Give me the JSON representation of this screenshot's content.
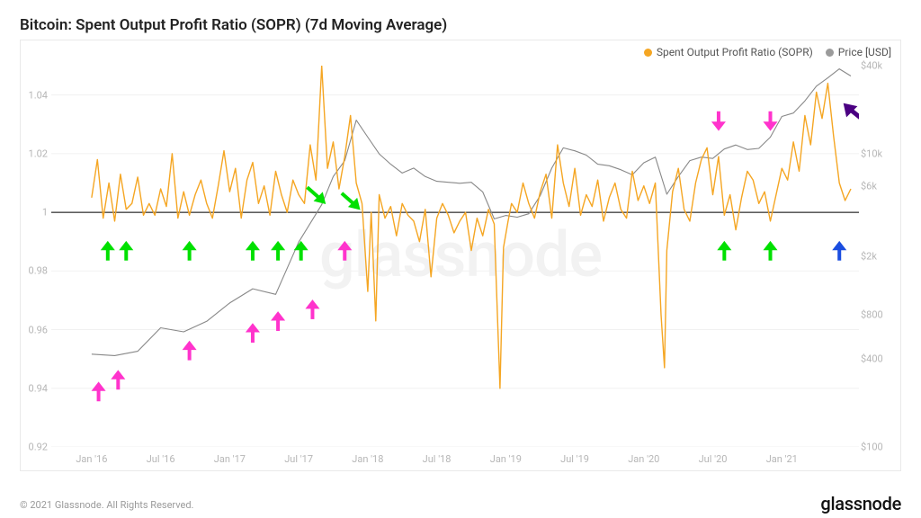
{
  "title": "Bitcoin: Spent Output Profit Ratio (SOPR) (7d Moving Average)",
  "footer": "© 2021 Glassnode. All Rights Reserved.",
  "brand": "glassnode",
  "watermark": "glassnode",
  "legend": {
    "series1": {
      "label": "Spent Output Profit Ratio (SOPR)",
      "color": "#f5a623"
    },
    "series2": {
      "label": "Price [USD]",
      "color": "#9b9b9b"
    }
  },
  "chart": {
    "background_color": "#ffffff",
    "grid_color": "#f1f1f1",
    "axis_label_color": "#b6b6b6",
    "axis_label_fontsize": 11,
    "inner_width": 900,
    "inner_height": 426,
    "x": {
      "domain_months": [
        0,
        66
      ],
      "tick_months": [
        0,
        6,
        12,
        18,
        24,
        30,
        36,
        42,
        48,
        54,
        60,
        66
      ],
      "tick_labels": [
        "Jan '16",
        "Jul '16",
        "Jan '17",
        "Jul '17",
        "Jan '18",
        "Jul '18",
        "Jan '19",
        "Jul '19",
        "Jan '20",
        "Jul '20",
        "Jan '21",
        ""
      ],
      "first_tick_offset_frac": 0.05
    },
    "left_axis": {
      "domain": [
        0.92,
        1.05
      ],
      "ticks": [
        0.92,
        0.94,
        0.96,
        0.98,
        1.0,
        1.02,
        1.04
      ],
      "tick_labels": [
        "0.92",
        "0.94",
        "0.96",
        "0.98",
        "1",
        "1.02",
        "1.04"
      ],
      "ref_line": {
        "y": 1.0,
        "color": "#000000",
        "width": 1
      }
    },
    "right_axis": {
      "scale": "log",
      "domain": [
        100,
        40000
      ],
      "ticks": [
        100,
        400,
        800,
        2000,
        6000,
        10000,
        40000
      ],
      "tick_labels": [
        "$100",
        "$400",
        "$800",
        "$2k",
        "$6k",
        "$10k",
        "$40k"
      ]
    },
    "sopr_series": {
      "color": "#f5a623",
      "width": 1.4,
      "points": [
        [
          0,
          1.005
        ],
        [
          0.5,
          1.018
        ],
        [
          1,
          0.998
        ],
        [
          1.5,
          1.01
        ],
        [
          2,
          0.997
        ],
        [
          2.5,
          1.013
        ],
        [
          3,
          1.001
        ],
        [
          3.5,
          1.003
        ],
        [
          4,
          1.012
        ],
        [
          4.5,
          0.999
        ],
        [
          5,
          1.003
        ],
        [
          5.5,
          0.999
        ],
        [
          6,
          1.008
        ],
        [
          6.5,
          1.002
        ],
        [
          7,
          1.02
        ],
        [
          7.5,
          0.998
        ],
        [
          8,
          1.007
        ],
        [
          8.5,
          0.999
        ],
        [
          9,
          1.006
        ],
        [
          9.5,
          1.011
        ],
        [
          10,
          1.003
        ],
        [
          10.5,
          0.998
        ],
        [
          11,
          1.009
        ],
        [
          11.5,
          1.021
        ],
        [
          12,
          1.007
        ],
        [
          12.5,
          1.015
        ],
        [
          13,
          0.998
        ],
        [
          13.5,
          1.011
        ],
        [
          14,
          1.017
        ],
        [
          14.5,
          1.003
        ],
        [
          15,
          1.009
        ],
        [
          15.5,
          0.999
        ],
        [
          16,
          1.014
        ],
        [
          16.5,
          1.006
        ],
        [
          17,
          1.0
        ],
        [
          17.5,
          1.011
        ],
        [
          18,
          1.006
        ],
        [
          18.5,
          1.003
        ],
        [
          19,
          1.023
        ],
        [
          19.5,
          1.011
        ],
        [
          20,
          1.05
        ],
        [
          20.5,
          1.015
        ],
        [
          21,
          1.024
        ],
        [
          21.5,
          1.008
        ],
        [
          22,
          1.019
        ],
        [
          22.5,
          1.033
        ],
        [
          23,
          1.01
        ],
        [
          23.5,
          1.003
        ],
        [
          24,
          0.973
        ],
        [
          24.3,
          1.0
        ],
        [
          24.7,
          0.963
        ],
        [
          25,
          1.006
        ],
        [
          25.5,
          0.998
        ],
        [
          26,
          1.002
        ],
        [
          26.5,
          0.992
        ],
        [
          27,
          1.003
        ],
        [
          27.5,
          0.999
        ],
        [
          28,
          0.997
        ],
        [
          28.5,
          0.99
        ],
        [
          29,
          1.001
        ],
        [
          29.5,
          0.978
        ],
        [
          30,
          0.998
        ],
        [
          30.5,
          1.003
        ],
        [
          31,
          0.999
        ],
        [
          31.5,
          0.993
        ],
        [
          32,
          0.997
        ],
        [
          32.5,
          1.0
        ],
        [
          33,
          0.987
        ],
        [
          33.5,
          0.998
        ],
        [
          34,
          0.992
        ],
        [
          34.5,
          1.001
        ],
        [
          35,
          0.996
        ],
        [
          35.5,
          0.94
        ],
        [
          35.8,
          0.988
        ],
        [
          36.2,
          0.997
        ],
        [
          36.5,
          1.003
        ],
        [
          37,
          1.0
        ],
        [
          37.5,
          1.01
        ],
        [
          38,
          1.003
        ],
        [
          38.5,
          0.998
        ],
        [
          39,
          1.007
        ],
        [
          39.5,
          1.013
        ],
        [
          40,
          0.998
        ],
        [
          40.5,
          1.023
        ],
        [
          41,
          1.01
        ],
        [
          41.5,
          1.002
        ],
        [
          42,
          1.015
        ],
        [
          42.5,
          0.999
        ],
        [
          43,
          1.006
        ],
        [
          43.5,
          1.002
        ],
        [
          44,
          1.011
        ],
        [
          44.5,
          0.997
        ],
        [
          45,
          1.005
        ],
        [
          45.5,
          1.01
        ],
        [
          46,
          1.001
        ],
        [
          46.5,
          0.998
        ],
        [
          47,
          1.014
        ],
        [
          47.5,
          1.004
        ],
        [
          48,
          1.009
        ],
        [
          48.5,
          1.003
        ],
        [
          49,
          1.01
        ],
        [
          49.5,
          0.965
        ],
        [
          49.8,
          0.947
        ],
        [
          50,
          0.987
        ],
        [
          50.5,
          1.007
        ],
        [
          51,
          1.015
        ],
        [
          51.5,
          1.001
        ],
        [
          52,
          0.997
        ],
        [
          52.5,
          1.01
        ],
        [
          53,
          1.018
        ],
        [
          53.5,
          1.022
        ],
        [
          54,
          1.006
        ],
        [
          54.5,
          1.019
        ],
        [
          55,
          0.999
        ],
        [
          55.5,
          1.006
        ],
        [
          56,
          0.994
        ],
        [
          56.5,
          1.005
        ],
        [
          57,
          1.014
        ],
        [
          57.5,
          1.011
        ],
        [
          58,
          1.003
        ],
        [
          58.5,
          1.007
        ],
        [
          59,
          0.997
        ],
        [
          59.5,
          1.006
        ],
        [
          60,
          1.015
        ],
        [
          60.5,
          1.011
        ],
        [
          61,
          1.024
        ],
        [
          61.5,
          1.014
        ],
        [
          62,
          1.033
        ],
        [
          62.5,
          1.023
        ],
        [
          63,
          1.041
        ],
        [
          63.5,
          1.032
        ],
        [
          64,
          1.044
        ],
        [
          64.5,
          1.026
        ],
        [
          65,
          1.01
        ],
        [
          65.5,
          1.004
        ],
        [
          66,
          1.008
        ]
      ]
    },
    "price_series": {
      "color": "#888888",
      "width": 1.1,
      "points": [
        [
          0,
          430
        ],
        [
          2,
          420
        ],
        [
          4,
          450
        ],
        [
          6,
          650
        ],
        [
          8,
          610
        ],
        [
          10,
          720
        ],
        [
          12,
          960
        ],
        [
          14,
          1200
        ],
        [
          16,
          1100
        ],
        [
          18,
          2500
        ],
        [
          20,
          4500
        ],
        [
          21,
          7000
        ],
        [
          22,
          9000
        ],
        [
          23,
          17000
        ],
        [
          24,
          13000
        ],
        [
          25,
          10000
        ],
        [
          26,
          8500
        ],
        [
          27,
          7400
        ],
        [
          28,
          8000
        ],
        [
          29,
          7000
        ],
        [
          30,
          6500
        ],
        [
          31,
          6400
        ],
        [
          32,
          6300
        ],
        [
          33,
          6400
        ],
        [
          34,
          5500
        ],
        [
          35,
          3600
        ],
        [
          36,
          3800
        ],
        [
          37,
          3700
        ],
        [
          38,
          3900
        ],
        [
          39,
          5200
        ],
        [
          40,
          8000
        ],
        [
          41,
          11000
        ],
        [
          42,
          10500
        ],
        [
          43,
          9800
        ],
        [
          44,
          8500
        ],
        [
          45,
          8300
        ],
        [
          46,
          7800
        ],
        [
          47,
          7200
        ],
        [
          48,
          8700
        ],
        [
          49,
          9500
        ],
        [
          50,
          5300
        ],
        [
          51,
          7000
        ],
        [
          52,
          9000
        ],
        [
          53,
          9500
        ],
        [
          54,
          9300
        ],
        [
          55,
          10800
        ],
        [
          56,
          11500
        ],
        [
          57,
          10700
        ],
        [
          58,
          10900
        ],
        [
          59,
          13000
        ],
        [
          60,
          18000
        ],
        [
          61,
          19000
        ],
        [
          62,
          23000
        ],
        [
          63,
          29000
        ],
        [
          64,
          33000
        ],
        [
          65,
          38000
        ],
        [
          66,
          34000
        ]
      ]
    },
    "arrows": [
      {
        "type": "up",
        "color": "#ff33cc",
        "x_month": 0.6,
        "y_left": 0.942
      },
      {
        "type": "up",
        "color": "#ff33cc",
        "x_month": 2.3,
        "y_left": 0.946
      },
      {
        "type": "up",
        "color": "#00e000",
        "x_month": 1.4,
        "y_left": 0.99
      },
      {
        "type": "up",
        "color": "#00e000",
        "x_month": 3.0,
        "y_left": 0.99
      },
      {
        "type": "up",
        "color": "#ff33cc",
        "x_month": 8.5,
        "y_left": 0.956
      },
      {
        "type": "up",
        "color": "#00e000",
        "x_month": 8.5,
        "y_left": 0.99
      },
      {
        "type": "up",
        "color": "#ff33cc",
        "x_month": 14.0,
        "y_left": 0.962
      },
      {
        "type": "up",
        "color": "#ff33cc",
        "x_month": 16.2,
        "y_left": 0.966
      },
      {
        "type": "up",
        "color": "#00e000",
        "x_month": 14.0,
        "y_left": 0.99
      },
      {
        "type": "up",
        "color": "#00e000",
        "x_month": 16.2,
        "y_left": 0.99
      },
      {
        "type": "up",
        "color": "#ff33cc",
        "x_month": 19.2,
        "y_left": 0.97
      },
      {
        "type": "up",
        "color": "#00e000",
        "x_month": 18.2,
        "y_left": 0.99
      },
      {
        "type": "diag",
        "color": "#00e000",
        "x_month": 20.3,
        "y_left": 1.003
      },
      {
        "type": "up",
        "color": "#ff33cc",
        "x_month": 22.0,
        "y_left": 0.99
      },
      {
        "type": "diag",
        "color": "#00e000",
        "x_month": 23.3,
        "y_left": 1.001
      },
      {
        "type": "down",
        "color": "#ff33cc",
        "x_month": 54.5,
        "y_left": 1.028
      },
      {
        "type": "down",
        "color": "#ff33cc",
        "x_month": 59.0,
        "y_left": 1.028
      },
      {
        "type": "up",
        "color": "#00e000",
        "x_month": 55.0,
        "y_left": 0.99
      },
      {
        "type": "up",
        "color": "#00e000",
        "x_month": 59.0,
        "y_left": 0.99
      },
      {
        "type": "up",
        "color": "#1a4de0",
        "x_month": 65.0,
        "y_left": 0.99
      },
      {
        "type": "diag_ne",
        "color": "#4b0082",
        "x_month": 65.4,
        "y_left": 1.037
      }
    ]
  }
}
